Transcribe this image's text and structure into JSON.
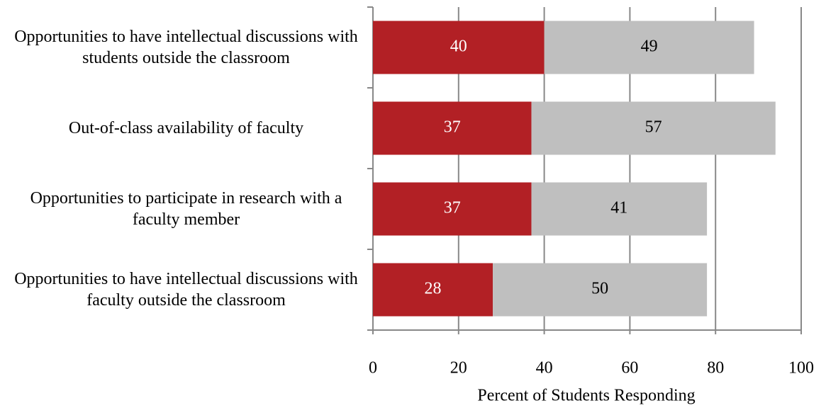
{
  "chart_data": {
    "type": "stacked_bar_horizontal",
    "x_label": "Percent of Students Responding",
    "categories": [
      "Opportunities to have intellectual discussions with students outside the classroom",
      "Out-of-class availability of faculty",
      "Opportunities to participate in research with a faculty member",
      "Opportunities to have intellectual discussions with faculty outside the classroom"
    ],
    "series": [
      {
        "color": "#b22025",
        "label_color": "#ffffff",
        "values": [
          40,
          37,
          37,
          28
        ]
      },
      {
        "color": "#bfbfbf",
        "label_color": "#000000",
        "values": [
          49,
          57,
          41,
          50
        ]
      }
    ],
    "xlim": [
      0,
      100
    ],
    "xticks": [
      0,
      20,
      40,
      60,
      80,
      100
    ],
    "grid": true
  }
}
